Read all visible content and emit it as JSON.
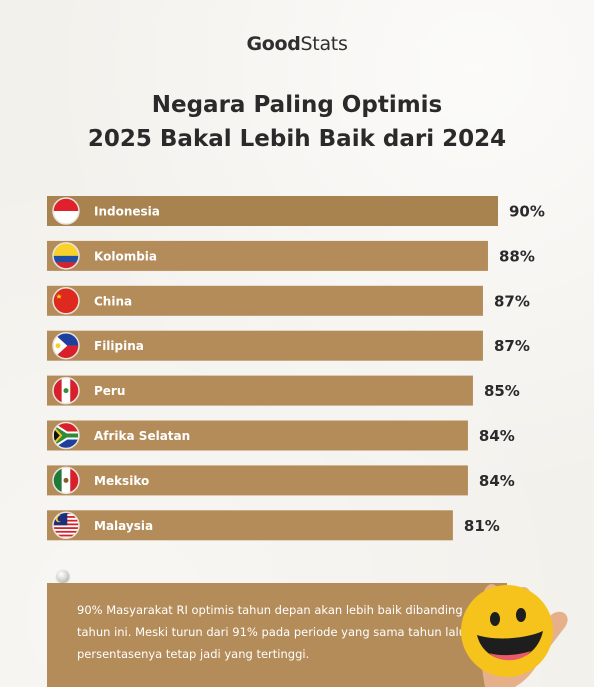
{
  "brand": {
    "part1": "Good",
    "part2": "Stats"
  },
  "title": {
    "line1": "Negara Paling Optimis",
    "line2": "2025 Bakal Lebih Baik dari 2024"
  },
  "colors": {
    "bar": "#b48c5a",
    "bar_highlight": "#a8824f",
    "text_dark": "#2a2a2a"
  },
  "chart_data": {
    "type": "bar",
    "orientation": "horizontal",
    "categories": [
      "Indonesia",
      "Kolombia",
      "China",
      "Filipina",
      "Peru",
      "Afrika Selatan",
      "Meksiko",
      "Malaysia"
    ],
    "values": [
      90,
      88,
      87,
      87,
      85,
      84,
      84,
      81
    ],
    "value_labels": [
      "90%",
      "88%",
      "87%",
      "87%",
      "85%",
      "84%",
      "84%",
      "81%"
    ],
    "flags": [
      "indonesia-flag-icon",
      "colombia-flag-icon",
      "china-flag-icon",
      "philippines-flag-icon",
      "peru-flag-icon",
      "south-africa-flag-icon",
      "mexico-flag-icon",
      "malaysia-flag-icon"
    ],
    "unit": "%"
  },
  "note": {
    "text": "90% Masyarakat RI optimis tahun depan akan lebih baik dibanding tahun ini. Meski turun dari 91% pada periode yang sama tahun lalu, persentasenya tetap jadi yang tertinggi."
  }
}
